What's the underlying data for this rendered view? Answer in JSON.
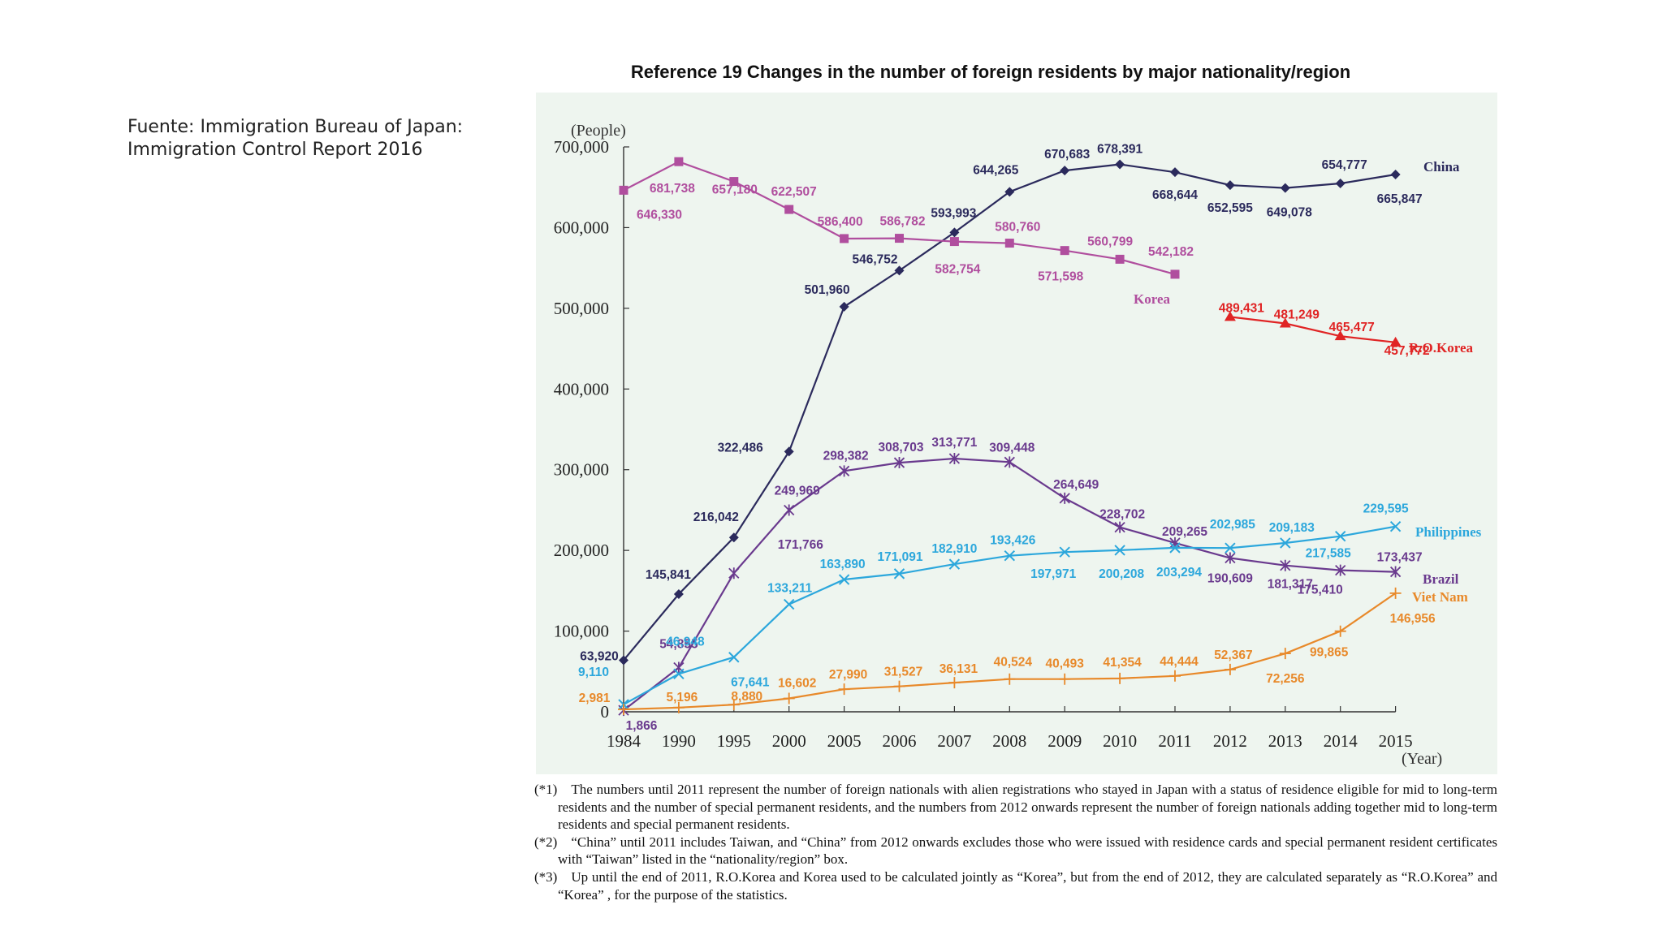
{
  "source": {
    "line1": "Fuente: Immigration Bureau of Japan:",
    "line2": "Immigration Control Report 2016"
  },
  "chart_data": {
    "type": "line",
    "title": "Reference 19 Changes in the number of foreign residents by major nationality/region",
    "ylabel": "(People)",
    "xlabel": "(Year)",
    "ylim": [
      0,
      700000
    ],
    "yticks": [
      0,
      100000,
      200000,
      300000,
      400000,
      500000,
      600000,
      700000
    ],
    "ytick_labels": [
      "0",
      "100,000",
      "200,000",
      "300,000",
      "400,000",
      "500,000",
      "600,000",
      "700,000"
    ],
    "categories": [
      "1984",
      "1990",
      "1995",
      "2000",
      "2005",
      "2006",
      "2007",
      "2008",
      "2009",
      "2010",
      "2011",
      "2012",
      "2013",
      "2014",
      "2015"
    ],
    "grid": false,
    "series": [
      {
        "name": "China",
        "color": "#2b2a5c",
        "marker": "diamond",
        "values": [
          63920,
          145841,
          216042,
          322486,
          501960,
          546752,
          593993,
          644265,
          670683,
          678391,
          668644,
          652595,
          649078,
          654777,
          665847
        ],
        "labels": [
          "63,920",
          "145,841",
          "216,042",
          "322,486",
          "501,960",
          "546,752",
          "593,993",
          "644,265",
          "670,683",
          "678,391",
          "668,644",
          "652,595",
          "649,078",
          "654,777",
          "665,847"
        ]
      },
      {
        "name": "Korea",
        "color": "#b04e9e",
        "marker": "square",
        "values": [
          646330,
          681738,
          657180,
          622507,
          586400,
          586782,
          582754,
          580760,
          571598,
          560799,
          542182,
          null,
          null,
          null,
          null
        ],
        "labels": [
          "646,330",
          "681,738",
          "657,180",
          "622,507",
          "586,400",
          "586,782",
          "582,754",
          "580,760",
          "571,598",
          "560,799",
          "542,182",
          null,
          null,
          null,
          null
        ]
      },
      {
        "name": "R.O.Korea",
        "color": "#e02424",
        "marker": "triangle",
        "values": [
          null,
          null,
          null,
          null,
          null,
          null,
          null,
          null,
          null,
          null,
          null,
          489431,
          481249,
          465477,
          457772
        ],
        "labels": [
          null,
          null,
          null,
          null,
          null,
          null,
          null,
          null,
          null,
          null,
          null,
          "489,431",
          "481,249",
          "465,477",
          "457,772"
        ]
      },
      {
        "name": "Brazil",
        "color": "#6a3a8e",
        "marker": "star",
        "values": [
          1866,
          54855,
          171766,
          249969,
          298382,
          308703,
          313771,
          309448,
          264649,
          228702,
          209265,
          190609,
          181317,
          175410,
          173437
        ],
        "labels": [
          "1,866",
          "54,855",
          "171,766",
          "249,969",
          "298,382",
          "308,703",
          "313,771",
          "309,448",
          "264,649",
          "228,702",
          "209,265",
          "190,609",
          "181,317",
          "175,410",
          "173,437"
        ]
      },
      {
        "name": "Philippines",
        "color": "#2ca7dc",
        "marker": "x",
        "values": [
          9110,
          46948,
          67641,
          133211,
          163890,
          171091,
          182910,
          193426,
          197971,
          200208,
          203294,
          202985,
          209183,
          217585,
          229595
        ],
        "labels": [
          "9,110",
          "46,948",
          "67,641",
          "133,211",
          "163,890",
          "171,091",
          "182,910",
          "193,426",
          "197,971",
          "200,208",
          "203,294",
          "202,985",
          "209,183",
          "217,585",
          "229,595"
        ]
      },
      {
        "name": "Viet Nam",
        "color": "#e8892a",
        "marker": "plus",
        "values": [
          2981,
          5196,
          8880,
          16602,
          27990,
          31527,
          36131,
          40524,
          40493,
          41354,
          44444,
          52367,
          72256,
          99865,
          146956
        ],
        "labels": [
          "2,981",
          "5,196",
          "8,880",
          "16,602",
          "27,990",
          "31,527",
          "36,131",
          "40,524",
          "40,493",
          "41,354",
          "44,444",
          "52,367",
          "72,256",
          "99,865",
          "146,956"
        ]
      }
    ]
  },
  "notes": [
    "(*1) The numbers until 2011 represent the number of foreign nationals with alien registrations who stayed in Japan with a status of residence eligible for mid to long-term residents and the number of special permanent residents, and the numbers from 2012 onwards represent the number of foreign nationals adding together mid to long-term residents and special permanent residents.",
    "(*2) “China” until 2011 includes Taiwan, and “China” from 2012 onwards excludes those who were issued with residence cards and special permanent resident certificates with “Taiwan” listed in the “nationality/region” box.",
    "(*3) Up until the end of 2011, R.O.Korea and Korea used to be calculated jointly as “Korea”, but from the end of 2012, they are calculated separately as “R.O.Korea” and “Korea” , for the purpose of the statistics."
  ]
}
